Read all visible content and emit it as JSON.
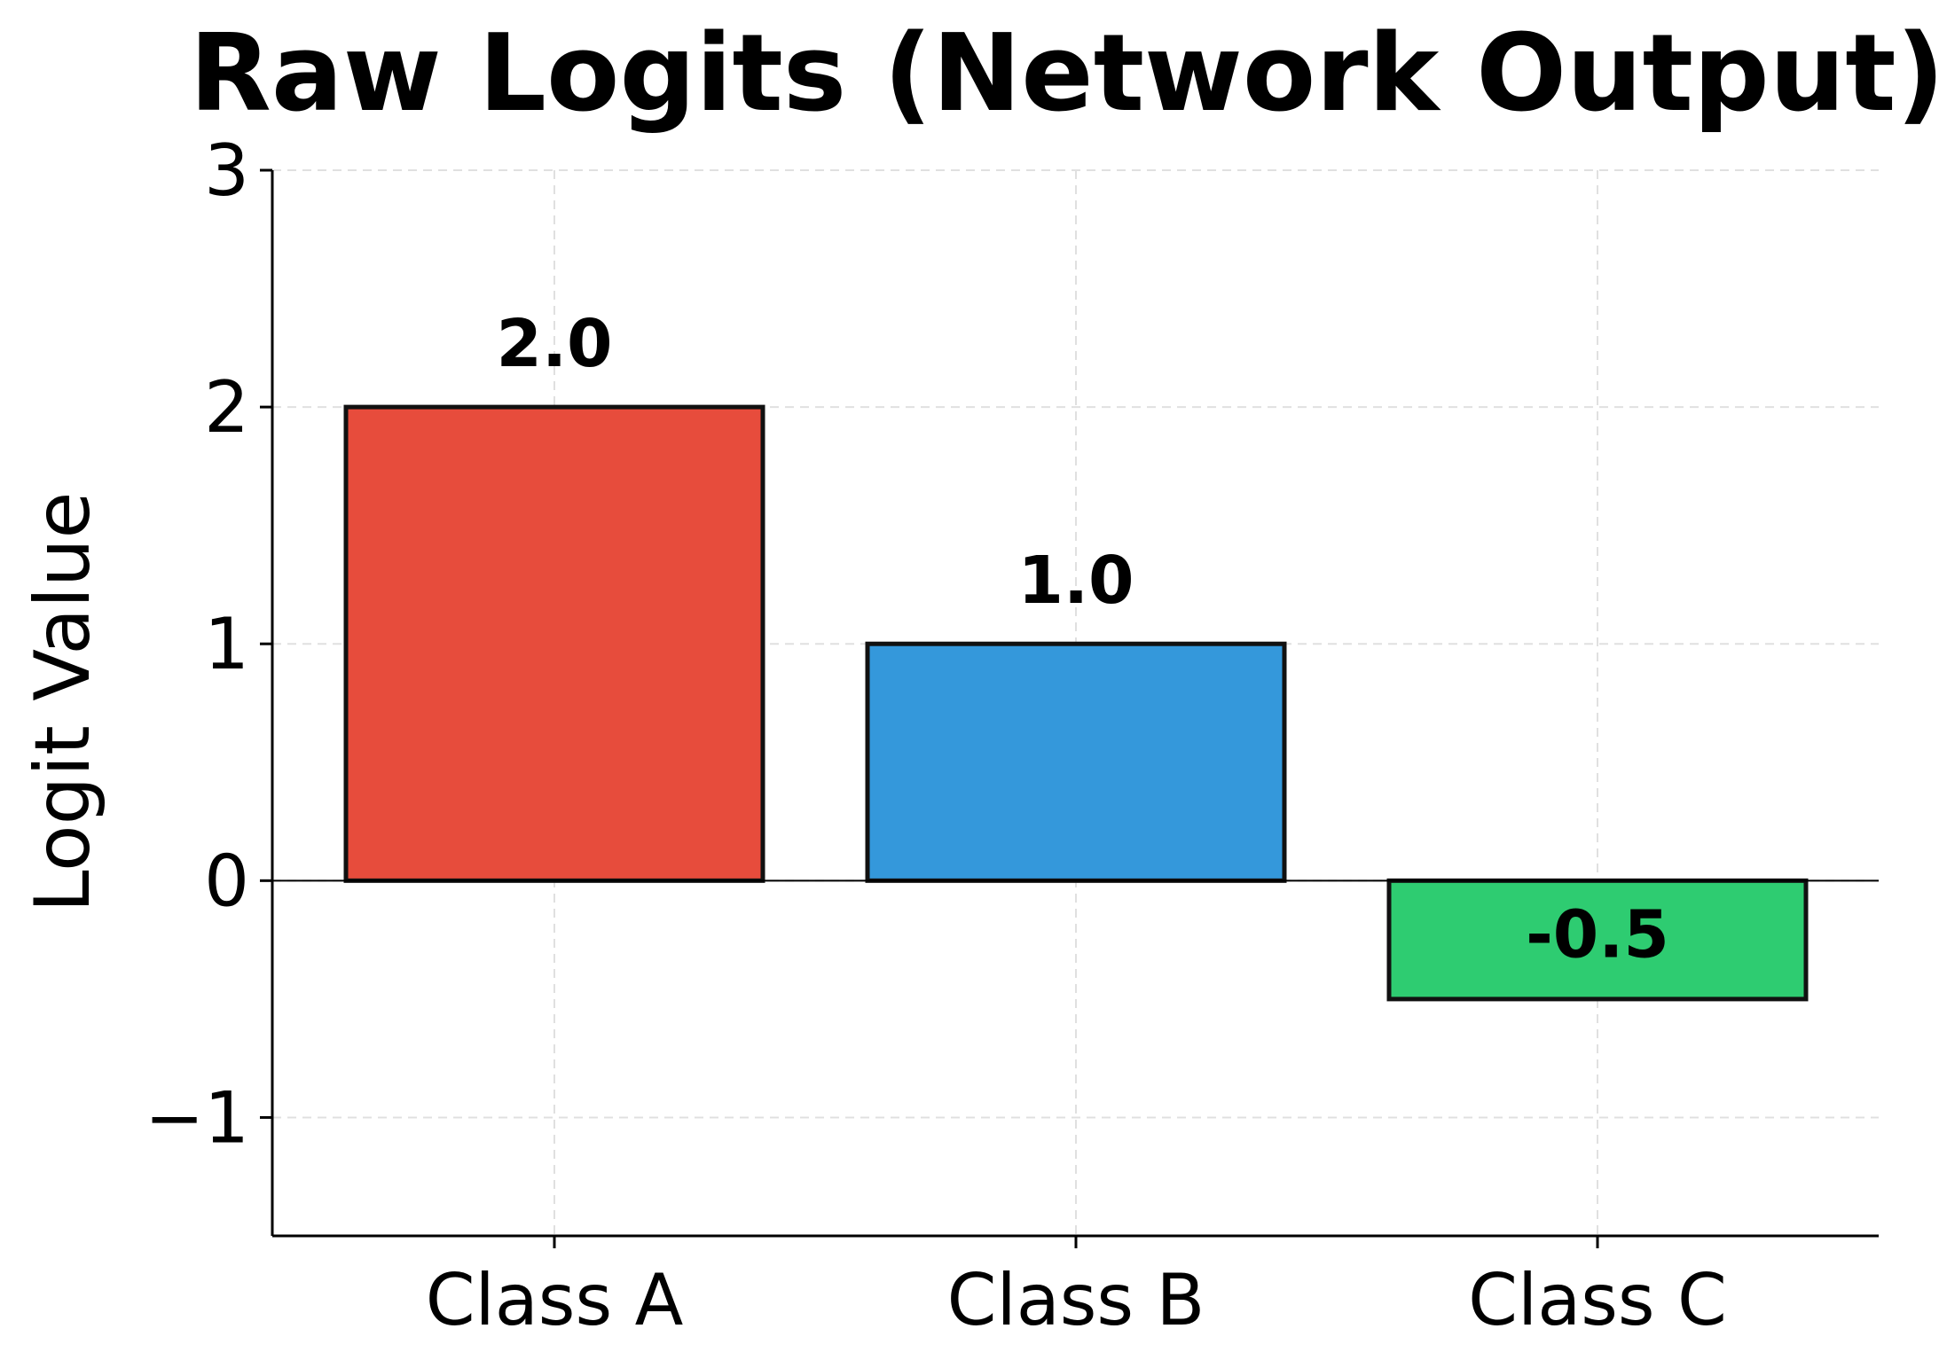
{
  "chart_data": {
    "type": "bar",
    "title": "Raw Logits (Network Output)",
    "xlabel": "",
    "ylabel": "Logit Value",
    "categories": [
      "Class A",
      "Class B",
      "Class C"
    ],
    "values": [
      2.0,
      1.0,
      -0.5
    ],
    "value_labels": [
      "2.0",
      "1.0",
      "-0.5"
    ],
    "colors": [
      "#e74c3c",
      "#3498db",
      "#2ecc71"
    ],
    "ylim": [
      -1.5,
      3
    ],
    "yticks": [
      -1,
      0,
      1,
      2,
      3
    ],
    "ytick_labels": [
      "−1",
      "0",
      "1",
      "2",
      "3"
    ],
    "grid": true,
    "zero_line": true
  }
}
